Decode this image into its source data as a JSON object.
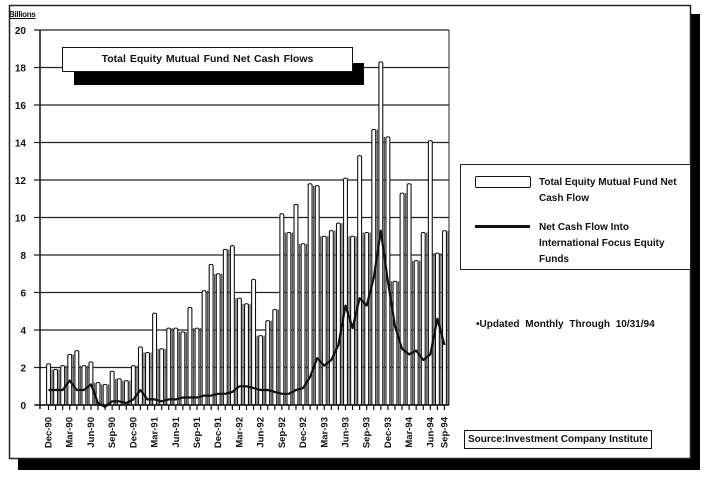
{
  "chart_data": {
    "type": "bar",
    "title": "Total Equity Mutual Fund Net Cash Flows",
    "ylabel": "Billions",
    "xlabel": "",
    "ylim": [
      0,
      20
    ],
    "yticks": [
      0,
      2,
      4,
      6,
      8,
      10,
      12,
      14,
      16,
      18,
      20
    ],
    "grid": true,
    "legend_position": "right",
    "x_tick_labels": [
      "Dec-90",
      "Mar-90",
      "Jun-90",
      "Sep-90",
      "Dec-90",
      "Mar-91",
      "Jun-91",
      "Sep-91",
      "Dec-91",
      "Mar-92",
      "Jun-92",
      "Sep-92",
      "Dec-92",
      "Mar-93",
      "Jun-93",
      "Sep-93",
      "Dec-93",
      "Mar-94",
      "Jun-94",
      "Sep-94"
    ],
    "series": [
      {
        "name": "Total Equity Mutual Fund Net Cash Flow",
        "type": "bar",
        "values": [
          2.2,
          1.9,
          2.1,
          2.7,
          2.9,
          2.1,
          2.3,
          1.2,
          1.1,
          1.8,
          1.4,
          1.3,
          2.1,
          3.1,
          2.8,
          4.9,
          3.0,
          4.1,
          4.1,
          3.9,
          5.2,
          4.1,
          6.1,
          7.5,
          7.0,
          8.3,
          8.5,
          5.7,
          5.4,
          6.7,
          3.7,
          4.5,
          5.1,
          10.2,
          9.2,
          10.7,
          8.6,
          11.8,
          11.7,
          9.0,
          9.3,
          9.7,
          12.1,
          9.0,
          13.3,
          9.2,
          14.7,
          18.3,
          14.3,
          6.6,
          11.3,
          11.8,
          7.7,
          9.2,
          14.1,
          8.1,
          9.3
        ],
        "color": "#ffffff"
      },
      {
        "name": "Net Cash Flow Into International Focus Equity Funds",
        "type": "line",
        "values": [
          0.8,
          0.8,
          0.8,
          1.3,
          0.8,
          0.8,
          1.1,
          0.1,
          -0.1,
          0.2,
          0.2,
          0.1,
          0.3,
          0.8,
          0.3,
          0.3,
          0.2,
          0.3,
          0.3,
          0.4,
          0.4,
          0.4,
          0.5,
          0.5,
          0.6,
          0.6,
          0.7,
          1.0,
          1.0,
          0.9,
          0.8,
          0.8,
          0.7,
          0.6,
          0.6,
          0.8,
          0.9,
          1.5,
          2.5,
          2.1,
          2.4,
          3.2,
          5.3,
          4.1,
          5.7,
          5.3,
          6.8,
          9.3,
          6.6,
          4.2,
          3.0,
          2.7,
          2.9,
          2.4,
          2.7,
          4.6,
          3.2
        ],
        "color": "#111111"
      }
    ],
    "annotations": [
      "•Updated Monthly Through 10/31/94",
      "Source:Investment Company Institute"
    ]
  },
  "chart": {
    "title": "Total Equity Mutual Fund Net Cash Flows",
    "y_units": "Billions",
    "legend": {
      "bar_label": "Total Equity Mutual Fund Net Cash Flow",
      "line_label": "Net Cash Flow Into International Focus Equity Funds"
    },
    "note": "•Updated Monthly Through 10/31/94",
    "source": "Source:Investment Company Institute"
  }
}
